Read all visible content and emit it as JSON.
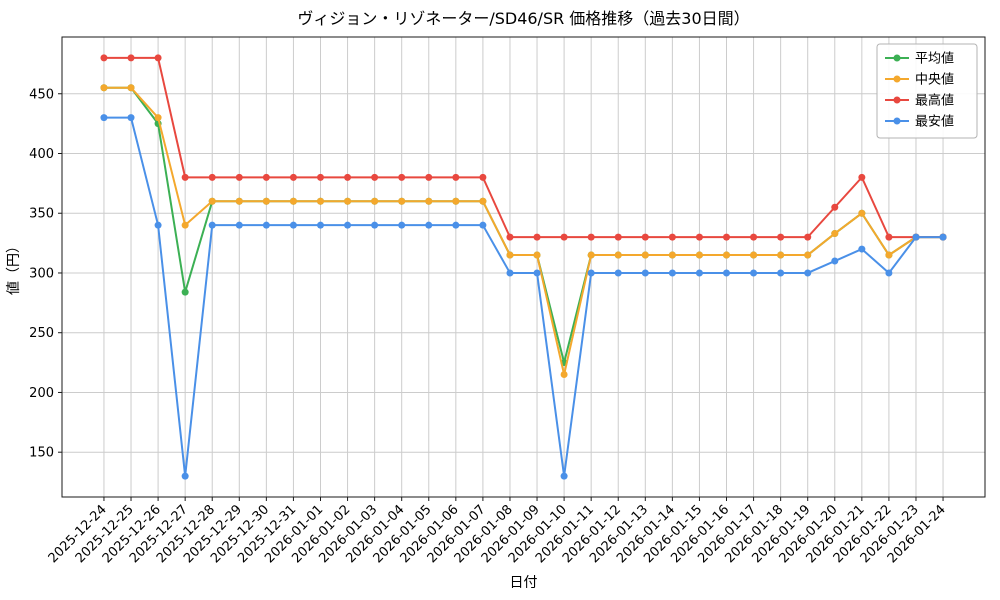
{
  "chart_data": {
    "type": "line",
    "title": "ヴィジョン・リゾネーター/SD46/SR 価格推移（過去30日間）",
    "xlabel": "日付",
    "ylabel": "値（円）",
    "grid": true,
    "legend_position": "upper right",
    "ylim": [
      112.5,
      497.5
    ],
    "yticks": [
      150,
      200,
      250,
      300,
      350,
      400,
      450
    ],
    "x": [
      "2025-12-24",
      "2025-12-25",
      "2025-12-26",
      "2025-12-27",
      "2025-12-28",
      "2025-12-29",
      "2025-12-30",
      "2025-12-31",
      "2026-01-01",
      "2026-01-02",
      "2026-01-03",
      "2026-01-04",
      "2026-01-05",
      "2026-01-06",
      "2026-01-07",
      "2026-01-08",
      "2026-01-09",
      "2026-01-10",
      "2026-01-11",
      "2026-01-12",
      "2026-01-13",
      "2026-01-14",
      "2026-01-15",
      "2026-01-16",
      "2026-01-17",
      "2026-01-18",
      "2026-01-19",
      "2026-01-20",
      "2026-01-21",
      "2026-01-22",
      "2026-01-23",
      "2026-01-24"
    ],
    "series": [
      {
        "name": "平均値",
        "color": "#3cb054",
        "values": [
          455,
          455,
          425,
          284,
          360,
          360,
          360,
          360,
          360,
          360,
          360,
          360,
          360,
          360,
          360,
          315,
          315,
          225,
          315,
          315,
          315,
          315,
          315,
          315,
          315,
          315,
          315,
          333,
          350,
          315,
          330,
          330
        ]
      },
      {
        "name": "中央値",
        "color": "#f4a82d",
        "values": [
          455,
          455,
          430,
          340,
          360,
          360,
          360,
          360,
          360,
          360,
          360,
          360,
          360,
          360,
          360,
          315,
          315,
          215,
          315,
          315,
          315,
          315,
          315,
          315,
          315,
          315,
          315,
          333,
          350,
          315,
          330,
          330
        ]
      },
      {
        "name": "最高値",
        "color": "#e8483f",
        "values": [
          480,
          480,
          480,
          380,
          380,
          380,
          380,
          380,
          380,
          380,
          380,
          380,
          380,
          380,
          380,
          330,
          330,
          330,
          330,
          330,
          330,
          330,
          330,
          330,
          330,
          330,
          330,
          355,
          380,
          330,
          330,
          330
        ]
      },
      {
        "name": "最安値",
        "color": "#4a90e8",
        "values": [
          430,
          430,
          340,
          130,
          340,
          340,
          340,
          340,
          340,
          340,
          340,
          340,
          340,
          340,
          340,
          300,
          300,
          130,
          300,
          300,
          300,
          300,
          300,
          300,
          300,
          300,
          300,
          310,
          320,
          300,
          330,
          330
        ]
      }
    ]
  }
}
